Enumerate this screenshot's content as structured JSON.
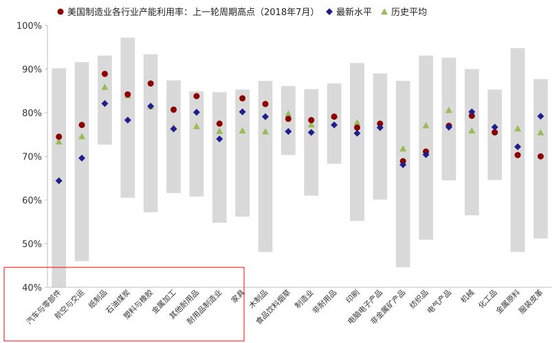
{
  "chart_data": {
    "type": "scatter",
    "title": "",
    "xlabel": "",
    "ylabel": "",
    "ylim": [
      40,
      100
    ],
    "yticks": [
      "40%",
      "50%",
      "60%",
      "70%",
      "80%",
      "90%",
      "100%"
    ],
    "grid": false,
    "legend_position": "top",
    "categories": [
      "汽车与零部件",
      "航空与交运",
      "纸制品",
      "石油煤炭",
      "塑料与橡胶",
      "金属加工",
      "其他耐用品",
      "耐用品制造业",
      "家具",
      "木制品",
      "食品饮料烟草",
      "制造业",
      "非耐用品",
      "印刷",
      "电脑电子产品",
      "非金属矿产品",
      "纺织品",
      "电气产品",
      "机械",
      "化工品",
      "金属原料",
      "服装皮革"
    ],
    "range_bars": {
      "color": "#d9d9d9",
      "low": [
        40.0,
        46.0,
        72.7,
        60.5,
        57.2,
        61.6,
        60.8,
        54.8,
        56.2,
        48.1,
        70.3,
        61.0,
        68.3,
        55.2,
        60.1,
        44.6,
        50.9,
        64.5,
        56.5,
        64.6,
        48.1,
        51.2
      ],
      "high": [
        90.2,
        91.6,
        93.1,
        97.2,
        93.4,
        87.4,
        84.9,
        84.7,
        85.3,
        87.3,
        86.1,
        85.4,
        86.7,
        91.4,
        89.0,
        87.3,
        93.1,
        92.6,
        90.0,
        85.3,
        94.8,
        87.7
      ]
    },
    "series": [
      {
        "name": "美国制造业各行业产能利用率：上一轮周期高点（2018年7月）",
        "marker": "circle",
        "color": "#8b0000",
        "values": [
          74.5,
          77.2,
          88.9,
          84.2,
          86.7,
          80.7,
          83.8,
          77.5,
          83.3,
          82.0,
          78.6,
          78.3,
          79.1,
          76.6,
          77.5,
          68.9,
          71.1,
          77.0,
          79.3,
          75.5,
          70.3,
          70.0
        ]
      },
      {
        "name": "最新水平",
        "marker": "diamond",
        "color": "#1f1f8c",
        "values": [
          64.4,
          69.6,
          82.1,
          78.3,
          81.5,
          76.3,
          80.1,
          74.0,
          80.2,
          79.1,
          75.7,
          75.5,
          77.2,
          75.3,
          76.6,
          68.1,
          70.4,
          76.7,
          80.2,
          76.7,
          72.2,
          79.2
        ]
      },
      {
        "name": "历史平均",
        "marker": "triangle",
        "color": "#9bbb59",
        "values": [
          73.4,
          74.6,
          85.9,
          84.0,
          81.5,
          76.7,
          76.9,
          75.8,
          75.9,
          75.7,
          79.8,
          77.3,
          79.3,
          77.8,
          77.1,
          71.8,
          77.1,
          80.6,
          75.9,
          75.9,
          76.4,
          75.5
        ]
      }
    ]
  }
}
